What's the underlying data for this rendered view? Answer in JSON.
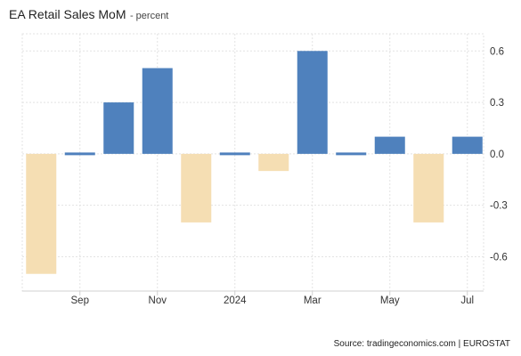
{
  "title": "EA Retail Sales MoM",
  "subtitle": "- percent",
  "source": "Source: tradingeconomics.com | EUROSTAT",
  "colors": {
    "positive": "#4f81bd",
    "negative": "#f5deb3",
    "grid": "#e3e3e3",
    "axis": "#d0d0d0"
  },
  "chart_data": {
    "type": "bar",
    "categories": [
      "Aug 2023",
      "Sep 2023",
      "Oct 2023",
      "Nov 2023",
      "Dec 2023",
      "Jan 2024",
      "Feb 2024",
      "Mar 2024",
      "Apr 2024",
      "May 2024",
      "Jun 2024",
      "Jul 2024"
    ],
    "values": [
      -0.7,
      0.01,
      0.3,
      0.5,
      -0.4,
      0.01,
      -0.1,
      0.6,
      0.01,
      0.1,
      -0.4,
      0.1
    ],
    "x_tick_labels": [
      {
        "category": "Sep 2023",
        "label": "Sep"
      },
      {
        "category": "Nov 2023",
        "label": "Nov"
      },
      {
        "category": "Jan 2024",
        "label": "2024"
      },
      {
        "category": "Mar 2024",
        "label": "Mar"
      },
      {
        "category": "May 2024",
        "label": "May"
      },
      {
        "category": "Jul 2024",
        "label": "Jul"
      }
    ],
    "y_ticks": [
      0.6,
      0.3,
      0.0,
      -0.3,
      -0.6
    ],
    "y_tick_labels": [
      "0.6",
      "0.3",
      "0.0",
      "-0.3",
      "-0.6"
    ],
    "ylim": [
      -0.8,
      0.7
    ],
    "y_axis_side": "right",
    "grid": true,
    "legend": "none",
    "xlabel": "",
    "ylabel": ""
  }
}
